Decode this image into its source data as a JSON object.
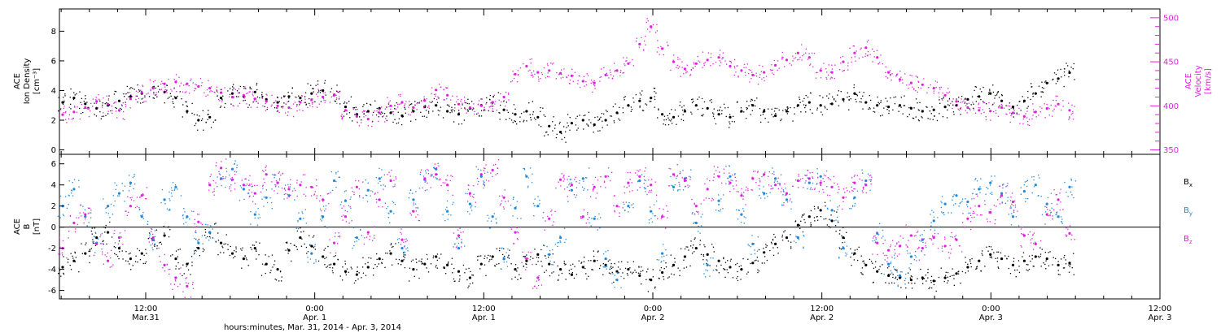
{
  "chart_data": [
    {
      "type": "scatter",
      "panel": "ace-density-velocity",
      "ylabel_left": [
        "ACE",
        "Ion Density",
        "[cm⁻³]"
      ],
      "ylabel_right": [
        "ACE",
        "Velocity",
        "[km/s]"
      ],
      "ylim_left": [
        -0.3,
        9.5
      ],
      "ylim_right": [
        345,
        510
      ],
      "left_ticks": [
        "0",
        "2",
        "4",
        "6",
        "8"
      ],
      "right_ticks": [
        "350",
        "400",
        "450",
        "500"
      ],
      "series": [
        {
          "axis": "left",
          "color": "#000000",
          "x": [
            0,
            1,
            2,
            3,
            4,
            5,
            6,
            7,
            8,
            9,
            10,
            11,
            12,
            13,
            14,
            15,
            16,
            17,
            18,
            19,
            20,
            21,
            22,
            23,
            24,
            25,
            26,
            27,
            28,
            29,
            30,
            31,
            32,
            33,
            34,
            35,
            36,
            37,
            38,
            39,
            40,
            41,
            42,
            43,
            44,
            45,
            46,
            47,
            48,
            49,
            50,
            51,
            52,
            53,
            54,
            55,
            56,
            57,
            58,
            59,
            60,
            61,
            62,
            63,
            64,
            65,
            66,
            67,
            68,
            69,
            70,
            71,
            72,
            73,
            74,
            75,
            76,
            77,
            78,
            79,
            80,
            81,
            82,
            83,
            84,
            85,
            86,
            87,
            88,
            89
          ],
          "values": [
            3.2,
            3.5,
            3.1,
            2.8,
            3.0,
            3.3,
            3.6,
            3.8,
            4.2,
            3.9,
            3.5,
            2.6,
            2.0,
            2.2,
            3.5,
            3.8,
            3.6,
            3.9,
            3.4,
            3.2,
            3.6,
            3.5,
            3.8,
            4.0,
            3.7,
            2.9,
            2.4,
            2.6,
            2.8,
            2.5,
            2.3,
            2.6,
            2.9,
            3.0,
            2.6,
            2.4,
            2.8,
            3.0,
            3.2,
            2.7,
            2.4,
            2.6,
            2.2,
            1.6,
            1.2,
            1.8,
            2.0,
            1.7,
            2.0,
            2.5,
            3.0,
            3.3,
            3.5,
            2.4,
            2.2,
            2.6,
            3.0,
            2.8,
            2.4,
            2.2,
            2.6,
            3.0,
            2.6,
            2.3,
            2.6,
            3.0,
            3.2,
            3.0,
            3.1,
            3.4,
            3.8,
            3.2,
            3.0,
            2.9,
            3.0,
            2.8,
            2.6,
            2.7,
            2.9,
            3.0,
            3.4,
            3.6,
            3.8,
            3.3,
            2.9,
            3.3,
            3.8,
            4.5,
            4.8,
            5.2
          ]
        },
        {
          "axis": "right",
          "color": "#e020e0",
          "x": [
            0,
            1,
            2,
            3,
            4,
            5,
            6,
            7,
            8,
            9,
            10,
            11,
            12,
            13,
            14,
            15,
            16,
            17,
            18,
            19,
            20,
            21,
            22,
            23,
            24,
            25,
            26,
            27,
            28,
            29,
            30,
            31,
            32,
            33,
            34,
            35,
            36,
            37,
            38,
            39,
            40,
            41,
            42,
            43,
            44,
            45,
            46,
            47,
            48,
            49,
            50,
            51,
            52,
            53,
            54,
            55,
            56,
            57,
            58,
            59,
            60,
            61,
            62,
            63,
            64,
            65,
            66,
            67,
            68,
            69,
            70,
            71,
            72,
            73,
            74,
            75,
            76,
            77,
            78,
            79,
            80,
            81,
            82,
            83,
            84,
            85,
            86,
            87,
            88,
            89
          ],
          "values": [
            390,
            393,
            398,
            405,
            402,
            395,
            408,
            415,
            420,
            425,
            427,
            425,
            422,
            420,
            415,
            410,
            412,
            408,
            405,
            400,
            398,
            404,
            407,
            410,
            412,
            395,
            388,
            385,
            392,
            400,
            404,
            398,
            406,
            418,
            412,
            402,
            398,
            400,
            404,
            410,
            436,
            445,
            438,
            440,
            437,
            434,
            428,
            426,
            435,
            440,
            448,
            470,
            490,
            465,
            450,
            442,
            448,
            452,
            455,
            445,
            440,
            435,
            438,
            446,
            452,
            460,
            455,
            440,
            438,
            450,
            460,
            466,
            455,
            438,
            430,
            426,
            424,
            420,
            412,
            405,
            398,
            395,
            394,
            398,
            392,
            388,
            393,
            397,
            402,
            395
          ]
        }
      ]
    },
    {
      "type": "scatter",
      "panel": "ace-magnetic-field",
      "ylabel": [
        "ACE",
        "B",
        "[nT]"
      ],
      "ylim": [
        -6.8,
        6.9
      ],
      "ticks": [
        "-6",
        "-4",
        "-2",
        "0",
        "2",
        "4",
        "6"
      ],
      "series": [
        {
          "name": "Bx",
          "label_main": "B",
          "label_sub": "x",
          "color": "#000000",
          "x": [
            0,
            1,
            2,
            3,
            4,
            5,
            6,
            7,
            8,
            9,
            10,
            11,
            12,
            13,
            14,
            15,
            16,
            17,
            18,
            19,
            20,
            21,
            22,
            23,
            24,
            25,
            26,
            27,
            28,
            29,
            30,
            31,
            32,
            33,
            34,
            35,
            36,
            37,
            38,
            39,
            40,
            41,
            42,
            43,
            44,
            45,
            46,
            47,
            48,
            49,
            50,
            51,
            52,
            53,
            54,
            55,
            56,
            57,
            58,
            59,
            60,
            61,
            62,
            63,
            64,
            65,
            66,
            67,
            68,
            69,
            70,
            71,
            72,
            73,
            74,
            75,
            76,
            77,
            78,
            79,
            80,
            81,
            82,
            83,
            84,
            85,
            86,
            87,
            88,
            89
          ],
          "values": [
            -3.8,
            -3.2,
            -2.5,
            -1.0,
            -0.5,
            -2.0,
            -3.0,
            -2.5,
            -1.2,
            -0.8,
            -3.0,
            -3.5,
            -2.0,
            -0.5,
            -1.5,
            -2.5,
            -3.0,
            -2.0,
            -3.5,
            -4.0,
            -2.2,
            -1.0,
            -1.8,
            -2.8,
            -3.5,
            -4.2,
            -4.5,
            -3.8,
            -3.0,
            -2.5,
            -3.2,
            -4.0,
            -3.5,
            -2.8,
            -3.6,
            -4.2,
            -4.8,
            -3.5,
            -2.8,
            -3.0,
            -4.0,
            -3.2,
            -2.6,
            -3.5,
            -4.0,
            -4.5,
            -3.8,
            -3.2,
            -3.6,
            -4.2,
            -4.0,
            -4.6,
            -5.0,
            -4.3,
            -3.6,
            -2.8,
            -2.0,
            -2.6,
            -3.2,
            -3.8,
            -4.0,
            -3.4,
            -2.4,
            -1.6,
            -1.0,
            0.2,
            1.0,
            1.6,
            0.6,
            -1.0,
            -2.5,
            -3.6,
            -4.2,
            -4.6,
            -4.8,
            -5.0,
            -4.8,
            -5.1,
            -4.8,
            -4.4,
            -3.8,
            -3.2,
            -2.6,
            -3.0,
            -3.6,
            -3.2,
            -2.8,
            -3.0,
            -3.6,
            -3.4
          ]
        },
        {
          "name": "By",
          "label_main": "B",
          "label_sub": "y",
          "color": "#1e88dc",
          "x": [
            0,
            1,
            2,
            3,
            4,
            5,
            6,
            7,
            8,
            9,
            10,
            11,
            12,
            13,
            14,
            15,
            16,
            17,
            18,
            19,
            20,
            21,
            22,
            23,
            24,
            25,
            26,
            27,
            28,
            29,
            30,
            31,
            32,
            33,
            34,
            35,
            36,
            37,
            38,
            39,
            40,
            41,
            42,
            43,
            44,
            45,
            46,
            47,
            48,
            49,
            50,
            51,
            52,
            53,
            54,
            55,
            56,
            57,
            58,
            59,
            60,
            61,
            62,
            63,
            64,
            65,
            66,
            67,
            68,
            69,
            70,
            71,
            72,
            73,
            74,
            75,
            76,
            77,
            78,
            79,
            80,
            81,
            82,
            83,
            84,
            85,
            86,
            87,
            88,
            89
          ],
          "values": [
            2.0,
            3.6,
            1.0,
            -1.5,
            2.0,
            3.2,
            4.2,
            1.0,
            -1.2,
            2.6,
            3.8,
            1.0,
            -1.5,
            -0.5,
            4.6,
            5.5,
            3.6,
            1.2,
            2.8,
            4.2,
            3.0,
            0.8,
            -2.5,
            1.0,
            4.4,
            2.5,
            -1.0,
            3.5,
            4.6,
            1.5,
            -2.0,
            2.6,
            4.5,
            5.5,
            1.5,
            -2.0,
            2.2,
            4.8,
            1.0,
            -3.0,
            1.8,
            4.8,
            2.0,
            -2.6,
            -1.0,
            3.5,
            4.6,
            0.8,
            -3.0,
            -5.0,
            2.0,
            4.4,
            1.5,
            -2.5,
            3.8,
            4.6,
            0.4,
            -3.6,
            2.5,
            4.8,
            1.2,
            -1.6,
            3.2,
            4.6,
            2.6,
            -1.0,
            4.2,
            4.8,
            1.6,
            -2.0,
            2.8,
            4.4,
            -0.6,
            -3.5,
            -4.6,
            -2.8,
            -1.2,
            0.6,
            2.2,
            3.0,
            2.4,
            3.6,
            4.2,
            3.2,
            1.0,
            3.4,
            4.0,
            2.2,
            1.0,
            3.8
          ]
        },
        {
          "name": "Bz",
          "label_main": "B",
          "label_sub": "z",
          "color": "#e020e0",
          "x": [
            0,
            1,
            2,
            3,
            4,
            5,
            6,
            7,
            8,
            9,
            10,
            11,
            12,
            13,
            14,
            15,
            16,
            17,
            18,
            19,
            20,
            21,
            22,
            23,
            24,
            25,
            26,
            27,
            28,
            29,
            30,
            31,
            32,
            33,
            34,
            35,
            36,
            37,
            38,
            39,
            40,
            41,
            42,
            43,
            44,
            45,
            46,
            47,
            48,
            49,
            50,
            51,
            52,
            53,
            54,
            55,
            56,
            57,
            58,
            59,
            60,
            61,
            62,
            63,
            64,
            65,
            66,
            67,
            68,
            69,
            70,
            71,
            72,
            73,
            74,
            75,
            76,
            77,
            78,
            79,
            80,
            81,
            82,
            83,
            84,
            85,
            86,
            87,
            88,
            89
          ],
          "values": [
            -2.0,
            0.4,
            1.2,
            -1.6,
            -3.2,
            -1.0,
            2.0,
            3.0,
            -1.0,
            -3.6,
            -4.8,
            -5.6,
            0.5,
            4.0,
            5.6,
            4.5,
            4.0,
            3.2,
            5.0,
            4.2,
            3.6,
            4.0,
            3.8,
            2.6,
            -1.5,
            1.0,
            3.8,
            -0.5,
            2.6,
            4.4,
            -1.2,
            1.5,
            4.6,
            5.0,
            4.0,
            -0.8,
            3.2,
            5.0,
            5.4,
            2.8,
            -0.5,
            -3.0,
            -4.8,
            0.8,
            4.5,
            4.0,
            1.0,
            3.8,
            4.8,
            2.0,
            4.2,
            4.8,
            4.0,
            1.0,
            5.0,
            4.4,
            2.0,
            3.6,
            4.8,
            4.2,
            3.0,
            4.6,
            5.0,
            4.0,
            3.2,
            4.4,
            4.6,
            4.2,
            3.8,
            2.8,
            4.2,
            4.0,
            -1.5,
            -2.2,
            -1.8,
            -0.8,
            -2.0,
            -1.0,
            -1.8,
            -1.2,
            0.8,
            2.0,
            1.4,
            3.0,
            2.4,
            -0.8,
            -1.6,
            1.2,
            2.6,
            -0.6
          ]
        }
      ]
    }
  ],
  "x_axis": {
    "ticks": [
      {
        "time": "12:00",
        "date": "Mar.31"
      },
      {
        "time": "0:00",
        "date": "Apr. 1"
      },
      {
        "time": "12:00",
        "date": "Apr. 1"
      },
      {
        "time": "0:00",
        "date": "Apr. 2"
      },
      {
        "time": "12:00",
        "date": "Apr. 2"
      },
      {
        "time": "0:00",
        "date": "Apr. 3"
      },
      {
        "time": "12:00",
        "date": "Apr. 3"
      }
    ],
    "label": "hours:minutes, Mar. 31, 2014 - Apr.  3, 2014"
  }
}
